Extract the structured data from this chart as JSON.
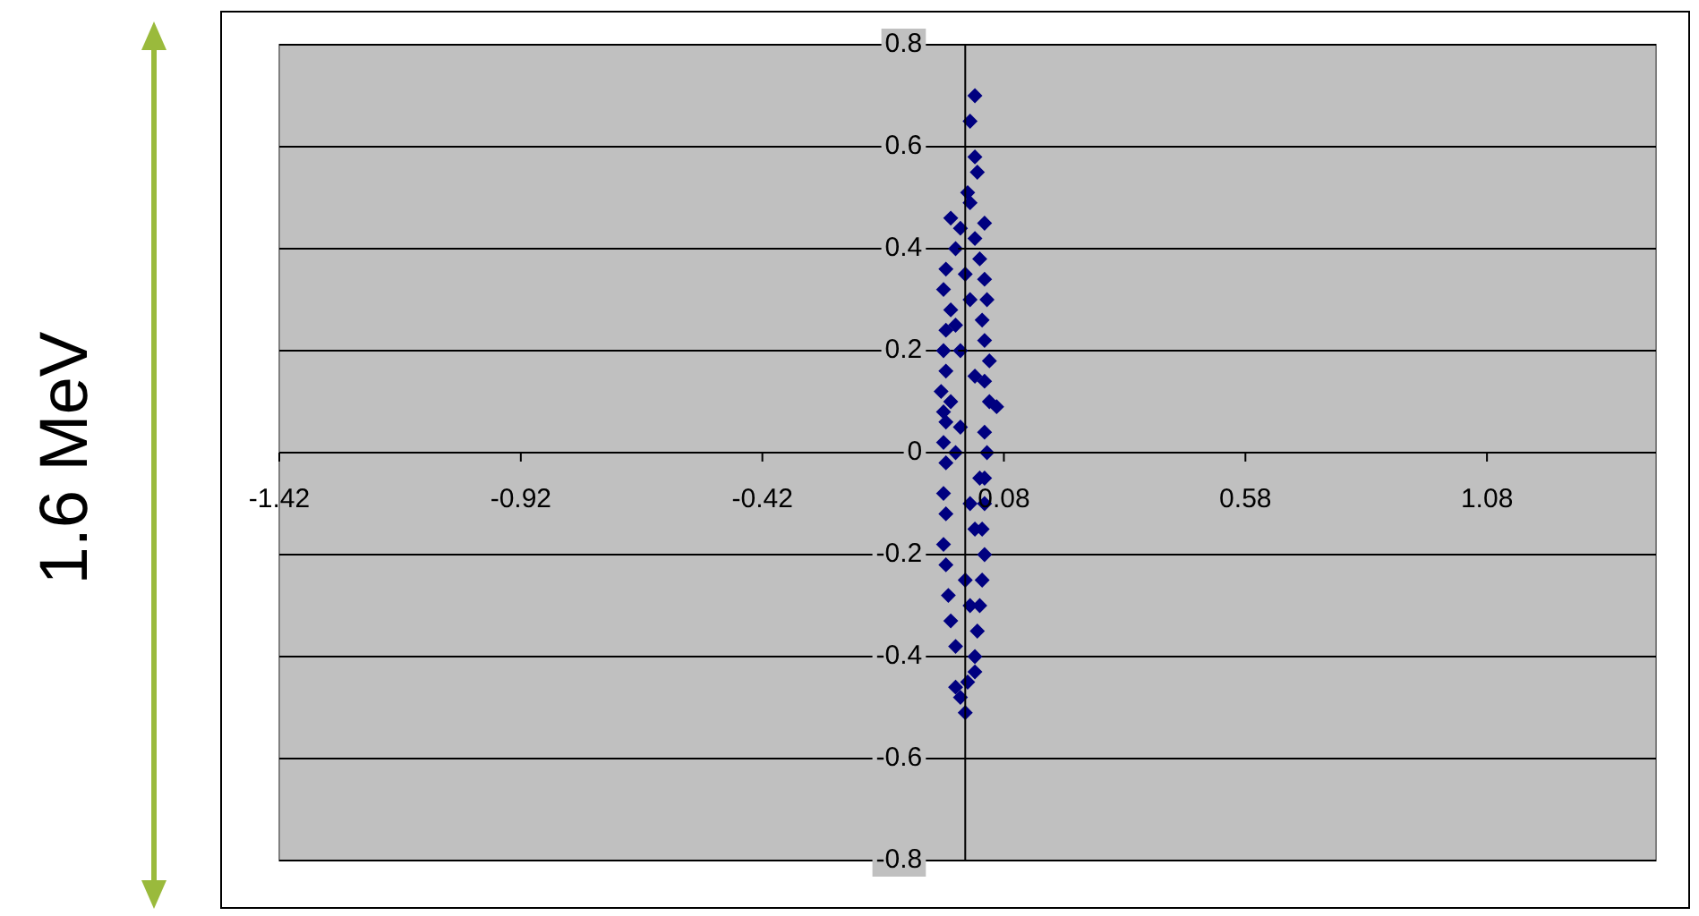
{
  "chart_data": {
    "type": "scatter",
    "ylabel": "1.6 MeV",
    "xlim": [
      -1.42,
      1.43
    ],
    "ylim": [
      -0.8,
      0.8
    ],
    "xticks": [
      -1.42,
      -0.92,
      -0.42,
      0.08,
      0.58,
      1.08
    ],
    "yticks": [
      -0.8,
      -0.6,
      -0.4,
      -0.2,
      0,
      0.2,
      0.4,
      0.6,
      0.8
    ],
    "grid": "y",
    "marker": "diamond",
    "legend": false,
    "series": [
      {
        "color": "#000080",
        "x": [
          0.02,
          0.01,
          0.02,
          0.025,
          0.005,
          0.01,
          -0.03,
          0.04,
          -0.01,
          0.02,
          -0.02,
          0.03,
          -0.04,
          0.04,
          -0.045,
          0.045,
          -0.03,
          0.035,
          -0.04,
          0.04,
          -0.045,
          0.05,
          -0.04,
          0.04,
          -0.05,
          0.05,
          -0.045,
          0.065,
          -0.04,
          0.04,
          -0.045,
          0.045,
          -0.04,
          0.04,
          -0.045,
          0.04,
          -0.04,
          0.035,
          -0.045,
          0.04,
          -0.04,
          0.035,
          -0.035,
          0.03,
          -0.03,
          0.025,
          -0.02,
          0.02,
          0.005,
          -0.02,
          0.02,
          0,
          -0.01,
          0.01,
          -0.02,
          0.02,
          -0.01,
          0.01,
          0,
          -0.03,
          0.03,
          0.0,
          -0.01,
          0.01,
          -0.02,
          0.02
        ],
        "values": [
          0.7,
          0.65,
          0.58,
          0.55,
          0.51,
          0.49,
          0.46,
          0.45,
          0.44,
          0.42,
          0.4,
          0.38,
          0.36,
          0.34,
          0.32,
          0.3,
          0.28,
          0.26,
          0.24,
          0.22,
          0.2,
          0.18,
          0.16,
          0.14,
          0.12,
          0.1,
          0.08,
          0.09,
          0.06,
          0.04,
          0.02,
          0.0,
          -0.02,
          -0.05,
          -0.08,
          -0.1,
          -0.12,
          -0.15,
          -0.18,
          -0.2,
          -0.22,
          -0.25,
          -0.28,
          -0.3,
          -0.33,
          -0.35,
          -0.38,
          -0.4,
          -0.45,
          -0.46,
          -0.43,
          -0.51,
          -0.48,
          0.3,
          0.25,
          0.15,
          0.05,
          -0.1,
          -0.25,
          0.1,
          -0.05,
          0.35,
          0.2,
          -0.3,
          0.0,
          -0.15
        ]
      }
    ]
  }
}
